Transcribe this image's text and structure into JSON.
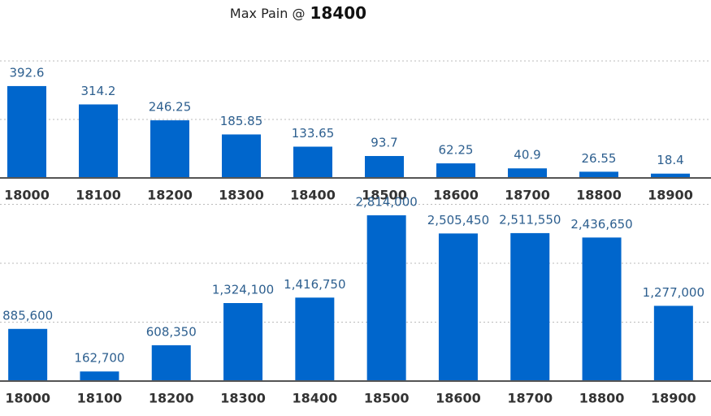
{
  "header": {
    "label": "Max Pain @",
    "value": "18400"
  },
  "chart_data": [
    {
      "type": "bar",
      "categories": [
        "18000",
        "18100",
        "18200",
        "18300",
        "18400",
        "18500",
        "18600",
        "18700",
        "18800",
        "18900"
      ],
      "values": [
        392.6,
        314.2,
        246.25,
        185.85,
        133.65,
        93.7,
        62.25,
        40.9,
        26.55,
        18.4
      ],
      "color": "#0066cc",
      "ylim": [
        0,
        750
      ],
      "yticks": [
        250,
        500
      ],
      "grid": true
    },
    {
      "type": "bar",
      "categories": [
        "18000",
        "18100",
        "18200",
        "18300",
        "18400",
        "18500",
        "18600",
        "18700",
        "18800",
        "18900"
      ],
      "values": [
        885600,
        162700,
        608350,
        1324100,
        1416750,
        2814000,
        2505450,
        2511550,
        2436650,
        1277000
      ],
      "value_labels": [
        "885,600",
        "162,700",
        "608,350",
        "1,324,100",
        "1,416,750",
        "2,814,000",
        "2,505,450",
        "2,511,550",
        "2,436,650",
        "1,277,000"
      ],
      "color": "#0066cc",
      "ylim": [
        0,
        3000000
      ],
      "yticks": [
        1000000,
        2000000,
        3000000
      ],
      "grid": true
    }
  ]
}
